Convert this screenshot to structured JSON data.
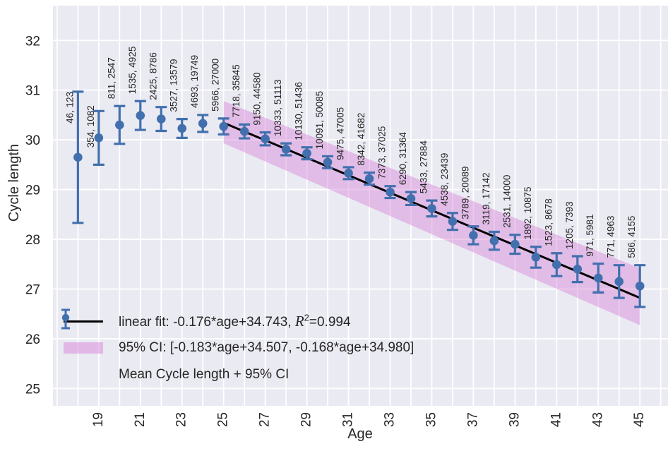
{
  "chart_data": {
    "type": "scatter",
    "title": "",
    "xlabel": "Age",
    "ylabel": "Cycle length",
    "xlim": [
      16.8,
      46.35
    ],
    "ylim": [
      24.65,
      32.7
    ],
    "x_tick_labels": [
      19,
      21,
      23,
      25,
      27,
      29,
      31,
      33,
      35,
      37,
      39,
      41,
      43,
      45
    ],
    "y_tick_labels": [
      25,
      26,
      27,
      28,
      29,
      30,
      31,
      32
    ],
    "grid": true,
    "legend_position": "lower left",
    "points": {
      "name": "Mean Cycle length + 95% CI",
      "ages": [
        18,
        19,
        20,
        21,
        22,
        23,
        24,
        25,
        26,
        27,
        28,
        29,
        30,
        31,
        32,
        33,
        34,
        35,
        36,
        37,
        38,
        39,
        40,
        41,
        42,
        43,
        44,
        45
      ],
      "mean": [
        29.65,
        30.04,
        30.3,
        30.49,
        30.42,
        30.23,
        30.33,
        30.27,
        30.17,
        30.02,
        29.81,
        29.73,
        29.55,
        29.33,
        29.22,
        28.95,
        28.82,
        28.62,
        28.36,
        28.08,
        27.97,
        27.9,
        27.64,
        27.49,
        27.4,
        27.22,
        27.15,
        27.06
      ],
      "ci_low": [
        28.33,
        29.5,
        29.92,
        30.2,
        30.18,
        30.04,
        30.16,
        30.11,
        30.03,
        29.89,
        29.69,
        29.61,
        29.43,
        29.21,
        29.1,
        28.83,
        28.69,
        28.46,
        28.19,
        27.9,
        27.79,
        27.71,
        27.43,
        27.26,
        27.14,
        26.93,
        26.82,
        26.64
      ],
      "ci_high": [
        30.97,
        30.58,
        30.68,
        30.78,
        30.66,
        30.42,
        30.5,
        30.43,
        30.31,
        30.15,
        29.93,
        29.85,
        29.67,
        29.45,
        29.34,
        29.07,
        28.95,
        28.78,
        28.53,
        28.26,
        28.15,
        28.09,
        27.85,
        27.72,
        27.66,
        27.51,
        27.48,
        27.48
      ],
      "count_labels": [
        "46, 123",
        "354, 1082",
        "811, 2547",
        "1535, 4925",
        "2425, 8786",
        "3527, 13579",
        "4693, 19749",
        "5966, 27000",
        "7718, 35845",
        "9150, 44580",
        "10333, 51113",
        "10130, 51436",
        "10091, 50085",
        "9475, 47005",
        "8342, 41682",
        "7373, 37025",
        "6290, 31364",
        "5433, 27884",
        "4538, 23439",
        "3789, 20089",
        "3119, 17142",
        "2531, 14000",
        "1892, 10875",
        "1523, 8678",
        "1205, 7393",
        "971, 5981",
        "771, 4963",
        "586, 4155"
      ]
    },
    "fit": {
      "slope": -0.176,
      "intercept": 34.743,
      "r2": 0.994,
      "x_start": 25,
      "x_end": 45
    },
    "ci_band": {
      "lower_slope": -0.183,
      "lower_intercept": 34.507,
      "upper_slope": -0.168,
      "upper_intercept": 34.98,
      "x_start": 25,
      "x_end": 45
    },
    "legend": {
      "fit_prefix": "linear fit: -0.176*age+34.743, ",
      "fit_r": "R",
      "fit_sup": "2",
      "fit_suffix": "=0.994",
      "ci_label": "95% CI: [-0.183*age+34.507, -0.168*age+34.980]",
      "points_label": "Mean Cycle length + 95% CI"
    }
  },
  "colors": {
    "figure_bg": "#ffffff",
    "axes_bg": "#eaeaf2",
    "grid": "#ffffff",
    "marker": "#4270ae",
    "fit_line": "#000000",
    "band": "#d884d8",
    "band_opacity": 0.45,
    "text": "#262626"
  }
}
